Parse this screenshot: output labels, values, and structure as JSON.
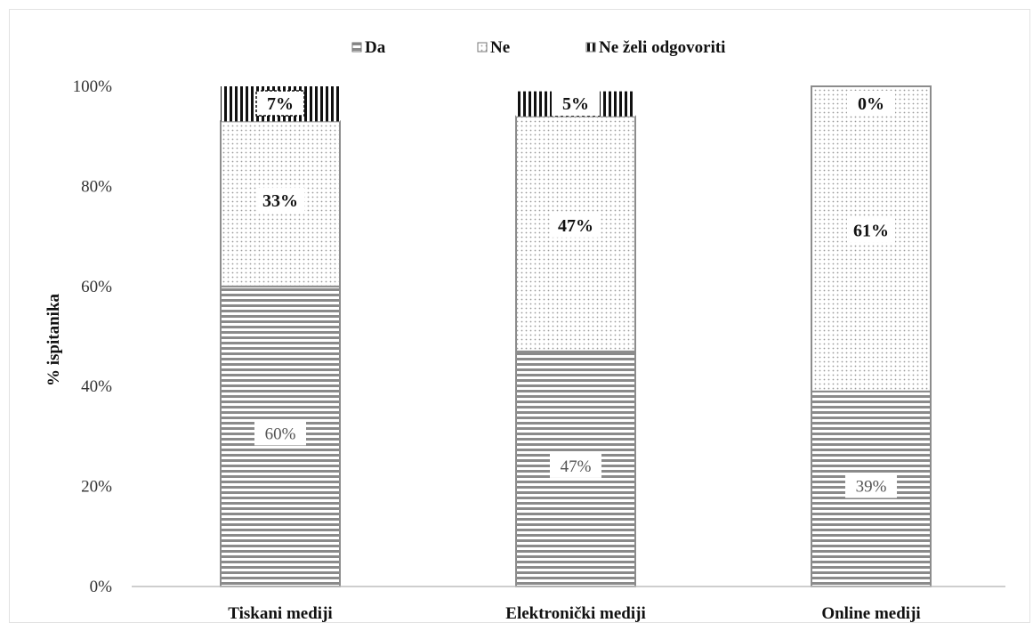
{
  "chart_data": {
    "type": "bar",
    "stacked": true,
    "categories": [
      "Tiskani mediji",
      "Elektronički mediji",
      "Online mediji"
    ],
    "series": [
      {
        "name": "Da",
        "values": [
          60,
          47,
          39
        ],
        "pattern": "horizontal-lines",
        "labels": [
          "60%",
          "47%",
          "39%"
        ]
      },
      {
        "name": "Ne",
        "values": [
          33,
          47,
          61
        ],
        "pattern": "dots",
        "labels": [
          "33%",
          "47%",
          "61%"
        ]
      },
      {
        "name": "Ne želi odgovoriti",
        "values": [
          7,
          5,
          0
        ],
        "pattern": "vertical-lines",
        "labels": [
          "7%",
          "5%",
          "0%"
        ]
      }
    ],
    "title": "",
    "xlabel": "",
    "ylabel": "% ispitanika",
    "ylim": [
      0,
      100
    ],
    "yticks": [
      "0%",
      "20%",
      "40%",
      "60%",
      "80%",
      "100%"
    ],
    "grid": false,
    "legend_position": "top",
    "colors": {
      "stroke": "#8c8c8c",
      "text": "#111111"
    }
  }
}
